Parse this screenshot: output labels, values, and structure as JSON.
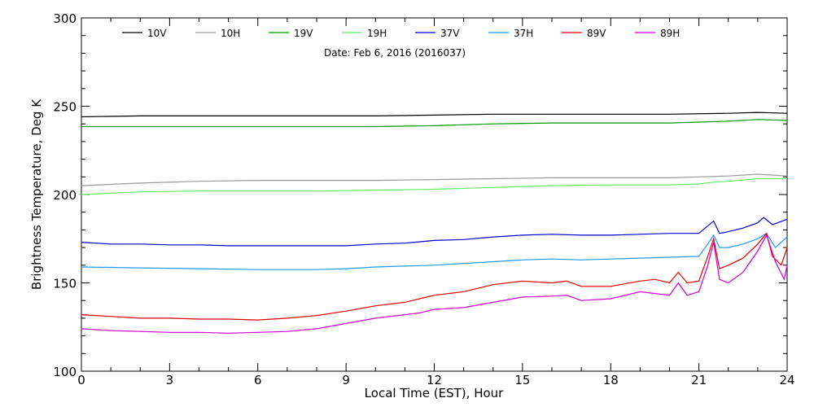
{
  "chart_data": {
    "type": "line",
    "title": "Date: Feb  6, 2016 (2016037)",
    "xlabel": "Local Time (EST), Hour",
    "ylabel": "Brightness Temperature, Deg K",
    "xlim": [
      0,
      24
    ],
    "ylim": [
      100,
      300
    ],
    "xticks": [
      0,
      3,
      6,
      9,
      12,
      15,
      18,
      21,
      24
    ],
    "yticks": [
      100,
      150,
      200,
      250,
      300
    ],
    "grid": false,
    "legend_position": "top",
    "series": [
      {
        "name": "10V",
        "color": "#000000",
        "points": [
          [
            0,
            244
          ],
          [
            2,
            244.5
          ],
          [
            4,
            244.5
          ],
          [
            6,
            244.5
          ],
          [
            8,
            244.5
          ],
          [
            10,
            244.5
          ],
          [
            12,
            245
          ],
          [
            14,
            245.5
          ],
          [
            16,
            245.5
          ],
          [
            18,
            245.5
          ],
          [
            20,
            245.5
          ],
          [
            22,
            246
          ],
          [
            23,
            246.5
          ],
          [
            24,
            246
          ]
        ]
      },
      {
        "name": "10H",
        "color": "#999999",
        "points": [
          [
            0,
            205
          ],
          [
            2,
            206.5
          ],
          [
            4,
            207.5
          ],
          [
            6,
            208
          ],
          [
            8,
            208
          ],
          [
            10,
            208
          ],
          [
            12,
            208.5
          ],
          [
            14,
            209
          ],
          [
            16,
            209.5
          ],
          [
            18,
            209.5
          ],
          [
            20,
            209.5
          ],
          [
            21,
            210
          ],
          [
            22,
            210.5
          ],
          [
            23,
            211.5
          ],
          [
            24,
            210.5
          ]
        ]
      },
      {
        "name": "19V",
        "color": "#009900",
        "points": [
          [
            0,
            238.5
          ],
          [
            2,
            238.5
          ],
          [
            4,
            238.5
          ],
          [
            6,
            238.5
          ],
          [
            8,
            238.5
          ],
          [
            10,
            238.5
          ],
          [
            12,
            239
          ],
          [
            14,
            240
          ],
          [
            16,
            240.5
          ],
          [
            18,
            240.5
          ],
          [
            20,
            240.5
          ],
          [
            21,
            241
          ],
          [
            22,
            241.5
          ],
          [
            23,
            242.5
          ],
          [
            24,
            242
          ]
        ]
      },
      {
        "name": "19H",
        "color": "#66ee66",
        "points": [
          [
            0,
            200
          ],
          [
            2,
            201.5
          ],
          [
            4,
            202
          ],
          [
            6,
            202
          ],
          [
            8,
            202
          ],
          [
            10,
            202.5
          ],
          [
            12,
            203
          ],
          [
            14,
            204
          ],
          [
            16,
            205
          ],
          [
            18,
            205.5
          ],
          [
            20,
            205.5
          ],
          [
            21,
            206
          ],
          [
            21.5,
            207
          ],
          [
            22,
            207.5
          ],
          [
            23,
            209
          ],
          [
            24,
            209
          ]
        ]
      },
      {
        "name": "37V",
        "color": "#0000cc",
        "points": [
          [
            0,
            173
          ],
          [
            1,
            172
          ],
          [
            2,
            172
          ],
          [
            3,
            171.5
          ],
          [
            4,
            171.5
          ],
          [
            5,
            171
          ],
          [
            6,
            171
          ],
          [
            7,
            171
          ],
          [
            8,
            171
          ],
          [
            9,
            171
          ],
          [
            10,
            172
          ],
          [
            11,
            172.5
          ],
          [
            12,
            174
          ],
          [
            13,
            174.5
          ],
          [
            14,
            176
          ],
          [
            15,
            177
          ],
          [
            16,
            177.5
          ],
          [
            17,
            177
          ],
          [
            18,
            177
          ],
          [
            19,
            177.5
          ],
          [
            20,
            178
          ],
          [
            21,
            178
          ],
          [
            21.5,
            185
          ],
          [
            21.7,
            178
          ],
          [
            22,
            179
          ],
          [
            22.5,
            181
          ],
          [
            23,
            184
          ],
          [
            23.2,
            187
          ],
          [
            23.5,
            183
          ],
          [
            24,
            186
          ]
        ]
      },
      {
        "name": "37H",
        "color": "#2299ee",
        "points": [
          [
            0,
            159
          ],
          [
            2,
            158.5
          ],
          [
            4,
            158
          ],
          [
            6,
            157.5
          ],
          [
            8,
            157.5
          ],
          [
            9,
            158
          ],
          [
            10,
            159
          ],
          [
            11,
            159.5
          ],
          [
            12,
            160
          ],
          [
            13,
            161
          ],
          [
            14,
            162
          ],
          [
            15,
            163
          ],
          [
            16,
            163.5
          ],
          [
            17,
            163
          ],
          [
            18,
            163.5
          ],
          [
            19,
            164
          ],
          [
            20,
            164.5
          ],
          [
            21,
            165
          ],
          [
            21.3,
            172
          ],
          [
            21.5,
            177
          ],
          [
            21.7,
            170
          ],
          [
            22,
            170
          ],
          [
            22.5,
            172
          ],
          [
            23,
            175
          ],
          [
            23.3,
            178
          ],
          [
            23.6,
            170
          ],
          [
            24,
            176
          ]
        ]
      },
      {
        "name": "89V",
        "color": "#dd0000",
        "points": [
          [
            0,
            132
          ],
          [
            1,
            131
          ],
          [
            2,
            130
          ],
          [
            3,
            130
          ],
          [
            4,
            129.5
          ],
          [
            5,
            129.5
          ],
          [
            6,
            129
          ],
          [
            7,
            130
          ],
          [
            8,
            131.5
          ],
          [
            9,
            134
          ],
          [
            10,
            137
          ],
          [
            11,
            139
          ],
          [
            11.5,
            141
          ],
          [
            12,
            143
          ],
          [
            13,
            145
          ],
          [
            14,
            149
          ],
          [
            15,
            151
          ],
          [
            16,
            150
          ],
          [
            16.5,
            151
          ],
          [
            17,
            148
          ],
          [
            18,
            148
          ],
          [
            19,
            151
          ],
          [
            19.5,
            152
          ],
          [
            20,
            150
          ],
          [
            20.3,
            156
          ],
          [
            20.6,
            150
          ],
          [
            21,
            151
          ],
          [
            21.3,
            165
          ],
          [
            21.5,
            175
          ],
          [
            21.7,
            158
          ],
          [
            22,
            160
          ],
          [
            22.5,
            164
          ],
          [
            23,
            172
          ],
          [
            23.3,
            178
          ],
          [
            23.5,
            165
          ],
          [
            23.8,
            160
          ],
          [
            24,
            170
          ]
        ]
      },
      {
        "name": "89H",
        "color": "#cc00cc",
        "points": [
          [
            0,
            124
          ],
          [
            1,
            123
          ],
          [
            2,
            122.5
          ],
          [
            3,
            122
          ],
          [
            4,
            122
          ],
          [
            5,
            121.5
          ],
          [
            6,
            122
          ],
          [
            7,
            122.5
          ],
          [
            8,
            124
          ],
          [
            9,
            127
          ],
          [
            10,
            130
          ],
          [
            11,
            132
          ],
          [
            11.5,
            133
          ],
          [
            12,
            135
          ],
          [
            13,
            136
          ],
          [
            14,
            139
          ],
          [
            15,
            142
          ],
          [
            16,
            142.5
          ],
          [
            16.5,
            143
          ],
          [
            17,
            140
          ],
          [
            18,
            141
          ],
          [
            19,
            145
          ],
          [
            20,
            143
          ],
          [
            20.3,
            150
          ],
          [
            20.6,
            143
          ],
          [
            21,
            145
          ],
          [
            21.3,
            160
          ],
          [
            21.5,
            173
          ],
          [
            21.7,
            152
          ],
          [
            22,
            150
          ],
          [
            22.5,
            156
          ],
          [
            23,
            168
          ],
          [
            23.3,
            177
          ],
          [
            23.6,
            162
          ],
          [
            23.9,
            152
          ],
          [
            24,
            160
          ]
        ]
      }
    ]
  }
}
